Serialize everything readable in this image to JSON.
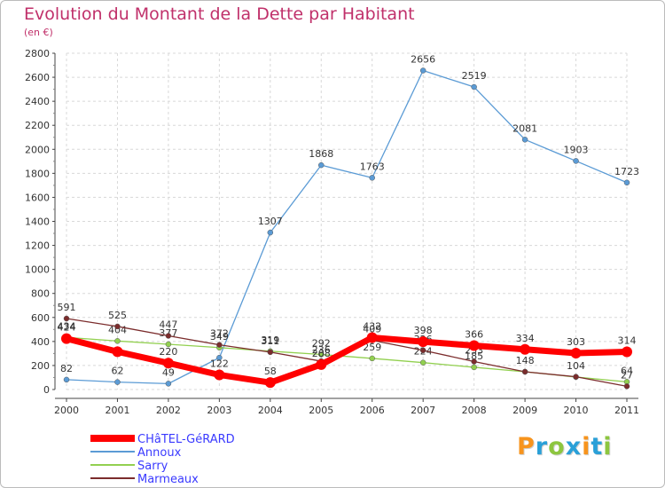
{
  "title": "Evolution du Montant de la Dette par Habitant",
  "subtitle": "(en €)",
  "logo": {
    "text": "Proxiti",
    "letters": [
      "P",
      "r",
      "o",
      "x",
      "i",
      "t",
      "i"
    ],
    "colors": [
      "#f7941d",
      "#2aa0d8",
      "#8dc63f",
      "#2aa0d8",
      "#f7941d",
      "#2aa0d8",
      "#8dc63f"
    ]
  },
  "chart_data": {
    "type": "line",
    "x": [
      "2000",
      "2001",
      "2002",
      "2003",
      "2004",
      "2005",
      "2006",
      "2007",
      "2008",
      "2009",
      "2010",
      "2011"
    ],
    "ylim": [
      0,
      2800
    ],
    "yticks": [
      "0",
      "200",
      "400",
      "600",
      "800",
      "1000",
      "1200",
      "1400",
      "1600",
      "1800",
      "2000",
      "2200",
      "2400",
      "2600",
      "2800"
    ],
    "grid": true,
    "legend_position": "bottom-left",
    "series": [
      {
        "name": "CHâTEL-GéRARD",
        "color": "#ff0000",
        "values": [
          424,
          315,
          220,
          122,
          58,
          208,
          432,
          398,
          366,
          334,
          303,
          314
        ],
        "labels": [
          "424",
          "",
          "220",
          "122",
          "58",
          "208",
          "432",
          "398",
          "366",
          "334",
          "303",
          "314"
        ]
      },
      {
        "name": "Annoux",
        "color": "#5b9bd5",
        "values": [
          82,
          62,
          49,
          265,
          1307,
          1868,
          1763,
          2656,
          2519,
          2081,
          1903,
          1723
        ],
        "labels": [
          "82",
          "62",
          "49",
          "",
          "1307",
          "1868",
          "1763",
          "2656",
          "2519",
          "2081",
          "1903",
          "1723"
        ]
      },
      {
        "name": "Sarry",
        "color": "#92d050",
        "values": [
          434,
          404,
          377,
          349,
          319,
          292,
          259,
          224,
          185,
          148,
          104,
          64
        ],
        "labels": [
          "434",
          "404",
          "377",
          "349",
          "319",
          "292",
          "259",
          "224",
          "185",
          "148",
          "104",
          "64"
        ]
      },
      {
        "name": "Marmeaux",
        "color": "#7b2c2c",
        "values": [
          591,
          525,
          447,
          372,
          311,
          236,
          409,
          326,
          233,
          148,
          106,
          27
        ],
        "labels": [
          "591",
          "525",
          "447",
          "372",
          "311",
          "236",
          "409",
          "326",
          "233",
          "",
          "",
          "27"
        ]
      }
    ]
  }
}
